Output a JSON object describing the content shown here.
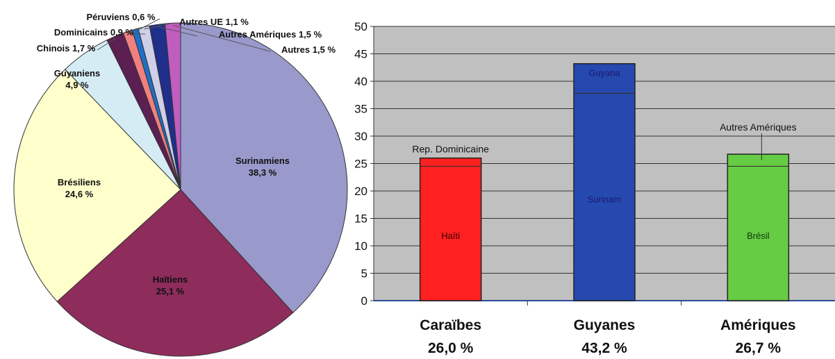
{
  "chart_data": [
    {
      "type": "pie",
      "slices": [
        {
          "label": "Surinamiens",
          "value_text": "38,3 %",
          "value": 38.3,
          "color": "#9999cc"
        },
        {
          "label": "Haïtiens",
          "value_text": "25,1 %",
          "value": 25.1,
          "color": "#8e2c5c"
        },
        {
          "label": "Brésiliens",
          "value_text": "24,6 %",
          "value": 24.6,
          "color": "#ffffcc"
        },
        {
          "label": "Guyaniens",
          "value_text": "4,9 %",
          "value": 4.9,
          "color": "#d5ecf5"
        },
        {
          "label": "Chinois",
          "value_text": "1,7 %",
          "value": 1.7,
          "color": "#5c1f52"
        },
        {
          "label": "Dominicains",
          "value_text": "0,9 %",
          "value": 0.9,
          "color": "#f08080"
        },
        {
          "label": "Péruviens",
          "value_text": "0,6 %",
          "value": 0.6,
          "color": "#1f6fc5"
        },
        {
          "label": "Autres UE",
          "value_text": "1,1 %",
          "value": 1.1,
          "color": "#cfcfe8"
        },
        {
          "label": "Autres Amériques",
          "value_text": "1,5 %",
          "value": 1.5,
          "color": "#1f2f8a"
        },
        {
          "label": "Autres",
          "value_text": "1,5 %",
          "value": 1.5,
          "color": "#c05ec0"
        }
      ]
    },
    {
      "type": "bar",
      "ylim": [
        0,
        50
      ],
      "yticks": [
        "0",
        "5",
        "10",
        "15",
        "20",
        "25",
        "30",
        "35",
        "40",
        "45",
        "50"
      ],
      "grid": true,
      "categories": [
        {
          "name": "Caraïbes",
          "pct_text": "26,0 %",
          "total": 26.0,
          "main_label": "Haïti",
          "main_value": 24.5,
          "top_label": "Rep. Dominicaine",
          "color": "#ff2020",
          "main_label_color": "#3a0000"
        },
        {
          "name": "Guyanes",
          "pct_text": "43,2 %",
          "total": 43.2,
          "main_label": "Surinam",
          "main_value": 37.8,
          "top_label": "Guyana",
          "color": "#2649b0",
          "main_label_color": "#1a1a6a"
        },
        {
          "name": "Amériques",
          "pct_text": "26,7 %",
          "total": 26.7,
          "main_label": "Brésil",
          "main_value": 24.5,
          "top_label": "Autres Amériques",
          "color": "#66cc44",
          "main_label_color": "#113311"
        }
      ]
    }
  ]
}
